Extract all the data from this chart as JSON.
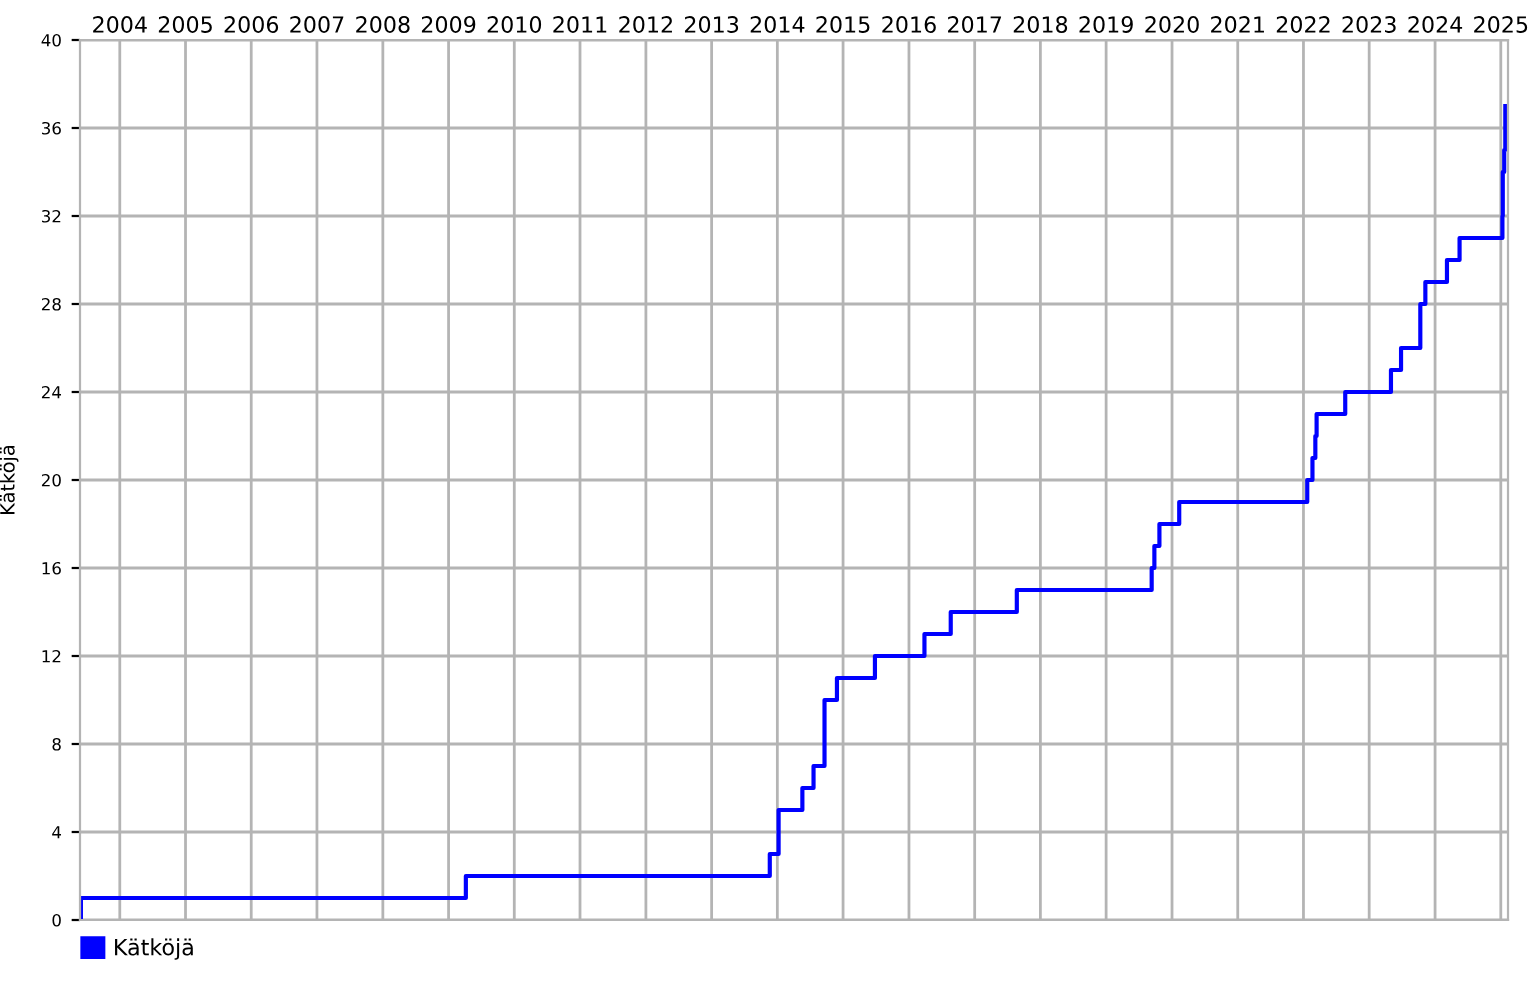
{
  "chart_data": {
    "type": "step",
    "ylabel": "Kätköjä",
    "x": [
      "2003-11-23",
      "2003-11-28",
      "2009-10-05",
      "2014-05-20",
      "2014-07-08",
      "2014-11-17",
      "2015-01-18",
      "2015-03-20",
      "2015-05-28",
      "2015-12-25",
      "2016-09-25",
      "2017-02-18",
      "2018-02-20",
      "2020-03-10",
      "2020-03-25",
      "2020-04-22",
      "2020-08-10",
      "2022-07-22",
      "2022-08-20",
      "2022-09-05",
      "2022-09-12",
      "2023-02-18",
      "2023-10-30",
      "2023-12-25",
      "2024-04-10",
      "2024-05-08",
      "2024-09-05",
      "2024-11-14",
      "2025-07-10",
      "2025-07-12",
      "2025-07-20",
      "2025-07-26"
    ],
    "series": [
      {
        "name": "Kätköjä",
        "color": "#0000ff",
        "values": [
          0,
          1,
          2,
          3,
          5,
          6,
          7,
          10,
          11,
          12,
          13,
          14,
          15,
          16,
          17,
          18,
          19,
          20,
          21,
          22,
          23,
          24,
          25,
          26,
          28,
          29,
          30,
          31,
          32,
          34,
          35,
          37
        ]
      }
    ],
    "xlim": [
      "2003-11-23",
      "2025-08-10"
    ],
    "xticks": [
      {
        "value": "2004-07-01",
        "label": "2004"
      },
      {
        "value": "2005-07-01",
        "label": "2005"
      },
      {
        "value": "2006-07-01",
        "label": "2006"
      },
      {
        "value": "2007-07-01",
        "label": "2007"
      },
      {
        "value": "2008-07-01",
        "label": "2008"
      },
      {
        "value": "2009-07-01",
        "label": "2009"
      },
      {
        "value": "2010-07-01",
        "label": "2010"
      },
      {
        "value": "2011-07-01",
        "label": "2011"
      },
      {
        "value": "2012-07-01",
        "label": "2012"
      },
      {
        "value": "2013-07-01",
        "label": "2013"
      },
      {
        "value": "2014-07-01",
        "label": "2014"
      },
      {
        "value": "2015-07-01",
        "label": "2015"
      },
      {
        "value": "2016-07-01",
        "label": "2016"
      },
      {
        "value": "2017-07-01",
        "label": "2017"
      },
      {
        "value": "2018-07-01",
        "label": "2018"
      },
      {
        "value": "2019-07-01",
        "label": "2019"
      },
      {
        "value": "2020-07-01",
        "label": "2020"
      },
      {
        "value": "2021-07-01",
        "label": "2021"
      },
      {
        "value": "2022-07-01",
        "label": "2022"
      },
      {
        "value": "2023-07-01",
        "label": "2023"
      },
      {
        "value": "2024-07-01",
        "label": "2024"
      },
      {
        "value": "2025-07-01",
        "label": "2025"
      }
    ],
    "ylim": [
      0,
      40
    ],
    "yticks": [
      0,
      4,
      8,
      12,
      16,
      20,
      24,
      28,
      32,
      36,
      40
    ],
    "grid": true,
    "legend": "bottom left",
    "line_style": "solid",
    "marker": "none"
  }
}
